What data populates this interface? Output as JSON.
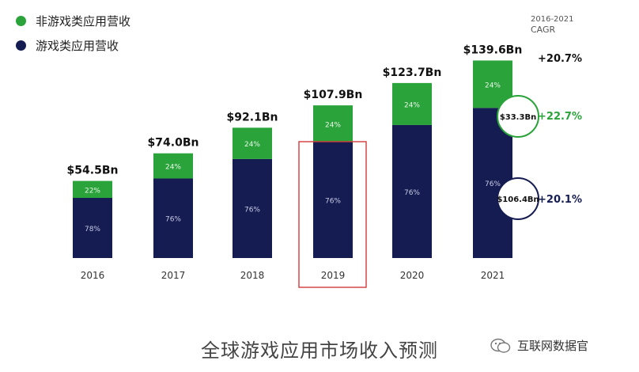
{
  "legend": {
    "items": [
      {
        "label": "非游戏类应用营收",
        "color": "#2aa33a"
      },
      {
        "label": "游戏类应用营收",
        "color": "#151c52"
      }
    ]
  },
  "cagr": {
    "period": "2016-2021",
    "title": "CAGR",
    "total": "+20.7%",
    "non_game": "+22.7%",
    "game": "+20.1%",
    "non_game_value": "$33.3Bn",
    "game_value": "$106.4Bn"
  },
  "caption": "全球游戏应用市场收入预测",
  "watermark": "互联网数据官",
  "chart_data": {
    "type": "bar",
    "stacked": true,
    "categories": [
      "2016",
      "2017",
      "2018",
      "2019",
      "2020",
      "2021"
    ],
    "totals": [
      "$54.5Bn",
      "$74.0Bn",
      "$92.1Bn",
      "$107.9Bn",
      "$123.7Bn",
      "$139.6Bn"
    ],
    "total_values": [
      54.5,
      74.0,
      92.1,
      107.9,
      123.7,
      139.6
    ],
    "series": [
      {
        "name": "游戏类应用营收",
        "color": "#151c52",
        "shares": [
          78,
          76,
          76,
          76,
          76,
          76
        ],
        "labels": [
          "78%",
          "76%",
          "76%",
          "76%",
          "76%",
          "76%"
        ]
      },
      {
        "name": "非游戏类应用营收",
        "color": "#2aa33a",
        "shares": [
          22,
          24,
          24,
          24,
          24,
          24
        ],
        "labels": [
          "22%",
          "24%",
          "24%",
          "24%",
          "24%",
          "24%"
        ]
      }
    ],
    "highlight": "2019",
    "ylim": [
      0,
      150
    ]
  }
}
